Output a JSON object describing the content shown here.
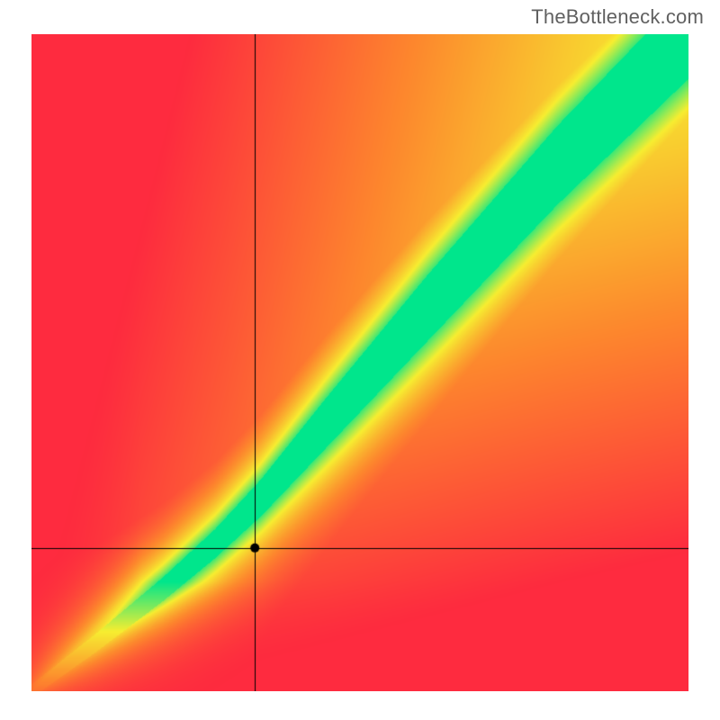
{
  "watermark": "TheBottleneck.com",
  "plot": {
    "type": "heatmap-with-crosshair",
    "canvas_size": 730,
    "border_color": "#000000",
    "background_gradient": {
      "comment": "diagonal-ish field: bottom-left red through orange/yellow to green along a band",
      "red": "#fe2b3f",
      "orange": "#fd8a2d",
      "yellow": "#f7ee31",
      "green": "#00e68c"
    },
    "band": {
      "comment": "green optimal band is a slightly curved diagonal from lower-left toward upper-right; wider at upper-right",
      "control_points": [
        {
          "u": 0.0,
          "v": 0.0,
          "half_width": 0.01
        },
        {
          "u": 0.1,
          "v": 0.075,
          "half_width": 0.014
        },
        {
          "u": 0.2,
          "v": 0.155,
          "half_width": 0.018
        },
        {
          "u": 0.28,
          "v": 0.225,
          "half_width": 0.022
        },
        {
          "u": 0.35,
          "v": 0.295,
          "half_width": 0.028
        },
        {
          "u": 0.45,
          "v": 0.41,
          "half_width": 0.038
        },
        {
          "u": 0.6,
          "v": 0.58,
          "half_width": 0.05
        },
        {
          "u": 0.8,
          "v": 0.8,
          "half_width": 0.06
        },
        {
          "u": 1.0,
          "v": 1.0,
          "half_width": 0.068
        }
      ],
      "yellow_halo_extra": 0.035
    },
    "crosshair": {
      "u": 0.34,
      "v": 0.218,
      "line_color": "#000000",
      "line_width": 1,
      "marker_radius": 5,
      "marker_fill": "#000000"
    }
  }
}
